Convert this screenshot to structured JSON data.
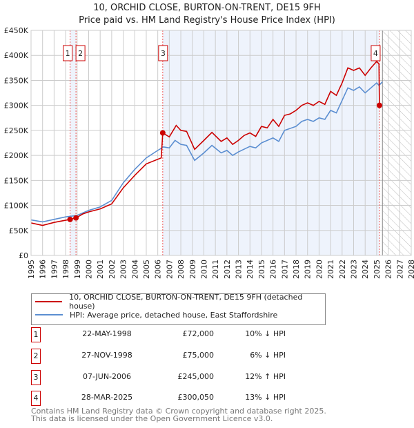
{
  "chart_data": {
    "type": "line",
    "title": "10, ORCHID CLOSE, BURTON-ON-TRENT, DE15 9FH",
    "subtitle": "Price paid vs. HM Land Registry's House Price Index (HPI)",
    "xlim": [
      1995,
      2028
    ],
    "ylim": [
      0,
      450000
    ],
    "yticks": [
      {
        "v": 0,
        "l": "£0"
      },
      {
        "v": 50000,
        "l": "£50K"
      },
      {
        "v": 100000,
        "l": "£100K"
      },
      {
        "v": 150000,
        "l": "£150K"
      },
      {
        "v": 200000,
        "l": "£200K"
      },
      {
        "v": 250000,
        "l": "£250K"
      },
      {
        "v": 300000,
        "l": "£300K"
      },
      {
        "v": 350000,
        "l": "£350K"
      },
      {
        "v": 400000,
        "l": "£400K"
      },
      {
        "v": 450000,
        "l": "£450K"
      }
    ],
    "xticks": [
      "1995",
      "1996",
      "1997",
      "1998",
      "1999",
      "2000",
      "2001",
      "2002",
      "2003",
      "2004",
      "2005",
      "2006",
      "2007",
      "2008",
      "2009",
      "2010",
      "2011",
      "2012",
      "2013",
      "2014",
      "2015",
      "2016",
      "2017",
      "2018",
      "2019",
      "2020",
      "2021",
      "2022",
      "2023",
      "2024",
      "2025",
      "2026",
      "2027",
      "2028"
    ],
    "grid": true,
    "forecast_from": 2025.5,
    "series": [
      {
        "name": "10, ORCHID CLOSE, BURTON-ON-TRENT, DE15 9FH (detached house)",
        "color": "#cc0000",
        "x": [
          1995,
          1996,
          1997,
          1998.39,
          1998.9,
          1999.5,
          2000,
          2001,
          2002,
          2003,
          2004,
          2005,
          2006.3,
          2006.43,
          2007,
          2007.6,
          2008,
          2008.5,
          2009.2,
          2010,
          2010.7,
          2011.5,
          2012,
          2012.5,
          2013,
          2013.5,
          2014,
          2014.5,
          2015,
          2015.5,
          2016,
          2016.5,
          2017,
          2017.5,
          2018,
          2018.5,
          2019,
          2019.5,
          2020,
          2020.5,
          2021,
          2021.5,
          2022,
          2022.5,
          2023,
          2023.5,
          2024,
          2024.5,
          2025,
          2025.2,
          2025.24
        ],
        "y": [
          65000,
          60000,
          66000,
          72000,
          75000,
          83000,
          87000,
          93000,
          103000,
          135000,
          160000,
          183000,
          195000,
          245000,
          237000,
          260000,
          250000,
          248000,
          212000,
          230000,
          246000,
          228000,
          235000,
          222000,
          230000,
          240000,
          245000,
          238000,
          258000,
          255000,
          272000,
          258000,
          280000,
          283000,
          290000,
          300000,
          305000,
          300000,
          308000,
          302000,
          328000,
          320000,
          345000,
          375000,
          370000,
          375000,
          360000,
          375000,
          388000,
          383000,
          300050
        ]
      },
      {
        "name": "HPI: Average price, detached house, East Staffordshire",
        "color": "#5b8ed1",
        "x": [
          1995,
          1996,
          1997,
          1998,
          1999,
          2000,
          2001,
          2002,
          2003,
          2004,
          2005,
          2006,
          2006.5,
          2007,
          2007.5,
          2008,
          2008.5,
          2009.2,
          2010,
          2010.7,
          2011.5,
          2012,
          2012.5,
          2013,
          2014,
          2014.5,
          2015,
          2016,
          2016.5,
          2017,
          2018,
          2018.5,
          2019,
          2019.5,
          2020,
          2020.5,
          2021,
          2021.5,
          2022,
          2022.5,
          2023,
          2023.5,
          2024,
          2024.5,
          2025,
          2025.2,
          2025.5
        ],
        "y": [
          71000,
          67000,
          72000,
          77000,
          80000,
          90000,
          97000,
          110000,
          145000,
          172000,
          195000,
          210000,
          217000,
          215000,
          230000,
          222000,
          220000,
          190000,
          205000,
          220000,
          205000,
          210000,
          200000,
          207000,
          218000,
          215000,
          225000,
          235000,
          228000,
          250000,
          258000,
          268000,
          272000,
          268000,
          275000,
          272000,
          290000,
          285000,
          310000,
          335000,
          330000,
          337000,
          325000,
          335000,
          345000,
          340000,
          347000
        ]
      }
    ],
    "sales": [
      {
        "n": "1",
        "x": 1998.39,
        "y": 72000,
        "date": "22-MAY-1998",
        "price": "£72,000",
        "hpi": "10% ↓ HPI"
      },
      {
        "n": "2",
        "x": 1998.9,
        "y": 75000,
        "date": "27-NOV-1998",
        "price": "£75,000",
        "hpi": "6% ↓ HPI"
      },
      {
        "n": "3",
        "x": 2006.43,
        "y": 245000,
        "date": "07-JUN-2006",
        "price": "£245,000",
        "hpi": "12% ↑ HPI"
      },
      {
        "n": "4",
        "x": 2025.24,
        "y": 300050,
        "date": "28-MAR-2025",
        "price": "£300,050",
        "hpi": "13% ↓ HPI"
      }
    ]
  },
  "footer": {
    "line1": "Contains HM Land Registry data © Crown copyright and database right 2025.",
    "line2": "This data is licensed under the Open Government Licence v3.0."
  }
}
